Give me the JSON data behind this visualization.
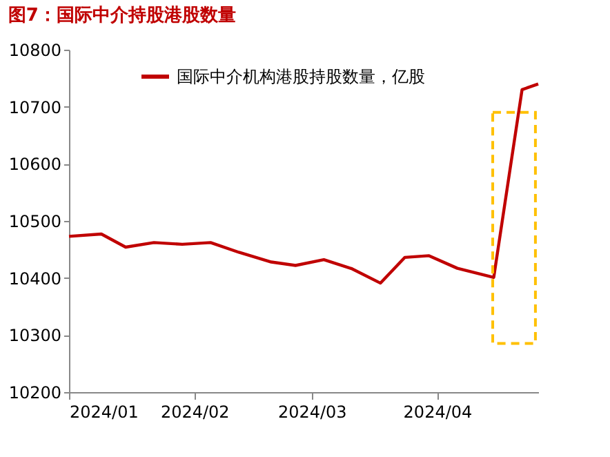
{
  "chart_data": {
    "type": "line",
    "title": "图7：国际中介持股港股数量",
    "x": [
      "2024-01-01",
      "2024-01-09",
      "2024-01-15",
      "2024-01-22",
      "2024-01-29",
      "2024-02-05",
      "2024-02-12",
      "2024-02-20",
      "2024-02-26",
      "2024-03-04",
      "2024-03-11",
      "2024-03-18",
      "2024-03-24",
      "2024-03-30",
      "2024-04-06",
      "2024-04-15",
      "2024-04-22",
      "2024-04-26"
    ],
    "series": [
      {
        "name": "国际中介机构港股持股数量，亿股",
        "color": "#c00000",
        "values": [
          10473,
          10477,
          10454,
          10462,
          10459,
          10462,
          10445,
          10428,
          10422,
          10432,
          10416,
          10391,
          10436,
          10439,
          10417,
          10401,
          10730,
          10740
        ]
      }
    ],
    "xlim": [
      "2024-01-01",
      "2024-04-26"
    ],
    "xticks": [
      {
        "value": "2024-01-01",
        "label": "2024/01"
      },
      {
        "value": "2024-02-01",
        "label": "2024/02"
      },
      {
        "value": "2024-03-01",
        "label": "2024/03"
      },
      {
        "value": "2024-04-01",
        "label": "2024/04"
      }
    ],
    "ylim": [
      10200,
      10800
    ],
    "yticks": [
      10200,
      10300,
      10400,
      10500,
      10600,
      10700,
      10800
    ],
    "grid": false,
    "legend": "top",
    "marker": "none",
    "line_style": "solid"
  }
}
